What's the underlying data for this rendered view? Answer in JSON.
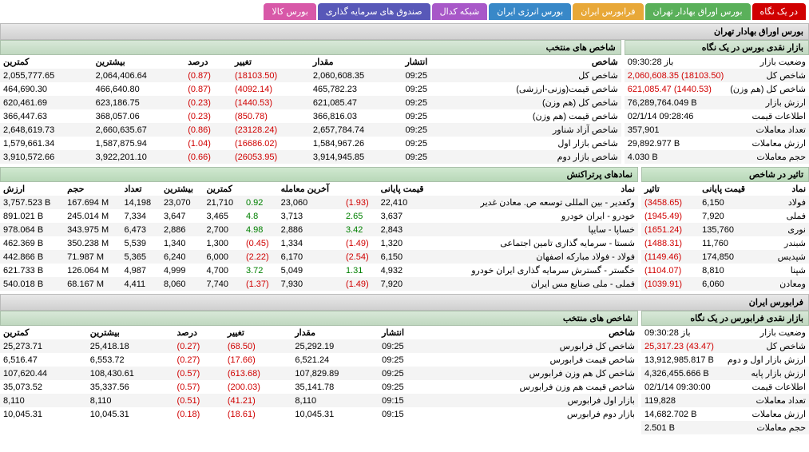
{
  "tabs": [
    {
      "label": "در یک نگاه",
      "bg": "#d00000"
    },
    {
      "label": "بورس اوراق بهادار تهران",
      "bg": "#5ab05a"
    },
    {
      "label": "فرابورس ایران",
      "bg": "#e8a838"
    },
    {
      "label": "بورس انرژی ایران",
      "bg": "#3888c8"
    },
    {
      "label": "شبکه کدال",
      "bg": "#a858c8"
    },
    {
      "label": "صندوق های سرمایه گذاری",
      "bg": "#5858b8"
    },
    {
      "label": "بورس کالا",
      "bg": "#d858a8"
    }
  ],
  "tse": {
    "title": "بورس اوراق بهادار تهران",
    "glance": {
      "title": "بازار نقدی بورس در یک نگاه",
      "rows": [
        {
          "k": "وضعیت بازار",
          "v": "باز 09:30:28",
          "cls": ""
        },
        {
          "k": "شاخص کل",
          "v": "2,060,608.35 (18103.50)",
          "cls": "neg"
        },
        {
          "k": "شاخص کل (هم وزن)",
          "v": "621,085.47 (1440.53)",
          "cls": "neg"
        },
        {
          "k": "ارزش بازار",
          "v": "76,289,764.049 B",
          "cls": ""
        },
        {
          "k": "اطلاعات قیمت",
          "v": "02/1/14 09:28:46",
          "cls": ""
        },
        {
          "k": "تعداد معاملات",
          "v": "357,901",
          "cls": ""
        },
        {
          "k": "ارزش معاملات",
          "v": "29,892.977 B",
          "cls": ""
        },
        {
          "k": "حجم معاملات",
          "v": "4.030 B",
          "cls": ""
        }
      ]
    },
    "indices": {
      "title": "شاخص های منتخب",
      "headers": [
        "شاخص",
        "انتشار",
        "مقدار",
        "تغییر",
        "درصد",
        "بیشترین",
        "کمترین"
      ],
      "rows": [
        [
          "شاخص کل",
          "09:25",
          "2,060,608.35",
          "(18103.50)",
          "(0.87)",
          "2,064,406.64",
          "2,055,777.65"
        ],
        [
          "شاخص قیمت(وزنی-ارزشی)",
          "09:25",
          "465,782.23",
          "(4092.14)",
          "(0.87)",
          "466,640.80",
          "464,690.30"
        ],
        [
          "شاخص کل (هم وزن)",
          "09:25",
          "621,085.47",
          "(1440.53)",
          "(0.23)",
          "623,186.75",
          "620,461.69"
        ],
        [
          "شاخص قیمت (هم وزن)",
          "09:25",
          "366,816.03",
          "(850.78)",
          "(0.23)",
          "368,057.06",
          "366,447.63"
        ],
        [
          "شاخص آزاد شناور",
          "09:25",
          "2,657,784.74",
          "(23128.24)",
          "(0.86)",
          "2,660,635.67",
          "2,648,619.73"
        ],
        [
          "شاخص بازار اول",
          "09:25",
          "1,584,967.26",
          "(16686.02)",
          "(1.04)",
          "1,587,875.94",
          "1,579,661.34"
        ],
        [
          "شاخص بازار دوم",
          "09:25",
          "3,914,945.85",
          "(26053.95)",
          "(0.66)",
          "3,922,201.10",
          "3,910,572.66"
        ]
      ]
    },
    "impact": {
      "title": "تاثیر در شاخص",
      "headers": [
        "نماد",
        "قیمت پایانی",
        "تاثیر"
      ],
      "rows": [
        [
          "فولاد",
          "6,150",
          "(3458.65)"
        ],
        [
          "فملی",
          "7,920",
          "(1945.49)"
        ],
        [
          "نوری",
          "135,760",
          "(1651.24)"
        ],
        [
          "شبندر",
          "11,760",
          "(1488.31)"
        ],
        [
          "شپدیس",
          "174,850",
          "(1149.46)"
        ],
        [
          "شپنا",
          "8,810",
          "(1104.07)"
        ],
        [
          "ومعادن",
          "6,060",
          "(1039.91)"
        ]
      ]
    },
    "top": {
      "title": "نمادهای پرتراکنش",
      "headers": [
        "نماد",
        "قیمت پایانی",
        "",
        "آخرین معامله",
        "",
        "کمترین",
        "بیشترین",
        "تعداد",
        "حجم",
        "ارزش"
      ],
      "rows": [
        [
          "وکغدیر - بین المللی توسعه ص. معادن غدیر",
          "22,410",
          "(1.93)",
          "23,060",
          "0.92",
          "21,710",
          "23,070",
          "14,198",
          "167.694 M",
          "3,757.523 B"
        ],
        [
          "خودرو - ایران خودرو",
          "3,637",
          "2.65",
          "3,713",
          "4.8",
          "3,465",
          "3,647",
          "7,334",
          "245.014 M",
          "891.021 B"
        ],
        [
          "خساپا - سایپا",
          "2,843",
          "3.42",
          "2,886",
          "4.98",
          "2,700",
          "2,886",
          "6,473",
          "343.975 M",
          "978.064 B"
        ],
        [
          "شستا - سرمایه گذاری تامین اجتماعی",
          "1,320",
          "(1.49)",
          "1,334",
          "(0.45)",
          "1,300",
          "1,340",
          "5,539",
          "350.238 M",
          "462.369 B"
        ],
        [
          "فولاد - فولاد مبارکه اصفهان",
          "6,150",
          "(2.54)",
          "6,170",
          "(2.22)",
          "6,000",
          "6,240",
          "5,365",
          "71.987 M",
          "442.866 B"
        ],
        [
          "خگستر - گسترش سرمایه گذاری ایران خودرو",
          "4,932",
          "1.31",
          "5,049",
          "3.72",
          "4,700",
          "4,999",
          "4,987",
          "126.064 M",
          "621.733 B"
        ],
        [
          "فملی - ملی صنایع مس ایران",
          "7,920",
          "(1.49)",
          "7,930",
          "(1.37)",
          "7,740",
          "8,060",
          "4,411",
          "68.167 M",
          "540.018 B"
        ]
      ]
    }
  },
  "ifb": {
    "title": "فرابورس ایران",
    "glance": {
      "title": "بازار نقدی فرابورس در یک نگاه",
      "rows": [
        {
          "k": "وضعیت بازار",
          "v": "باز 09:30:28",
          "cls": ""
        },
        {
          "k": "شاخص کل",
          "v": "25,317.23 (43.47)",
          "cls": "neg"
        },
        {
          "k": "ارزش بازار اول و دوم",
          "v": "13,912,985.817 B",
          "cls": ""
        },
        {
          "k": "ارزش بازار پایه",
          "v": "4,326,455.666 B",
          "cls": ""
        },
        {
          "k": "اطلاعات قیمت",
          "v": "02/1/14 09:30:00",
          "cls": ""
        },
        {
          "k": "تعداد معاملات",
          "v": "119,828",
          "cls": ""
        },
        {
          "k": "ارزش معاملات",
          "v": "14,682.702 B",
          "cls": ""
        },
        {
          "k": "حجم معاملات",
          "v": "2.501 B",
          "cls": ""
        }
      ]
    },
    "indices": {
      "title": "شاخص های منتخب",
      "headers": [
        "شاخص",
        "انتشار",
        "مقدار",
        "تغییر",
        "درصد",
        "بیشترین",
        "کمترین"
      ],
      "rows": [
        [
          "شاخص کل فرابورس",
          "09:25",
          "25,292.19",
          "(68.50)",
          "(0.27)",
          "25,418.18",
          "25,273.71"
        ],
        [
          "شاخص قیمت فرابورس",
          "09:25",
          "6,521.24",
          "(17.66)",
          "(0.27)",
          "6,553.72",
          "6,516.47"
        ],
        [
          "شاخص کل هم وزن فرابورس",
          "09:25",
          "107,829.89",
          "(613.68)",
          "(0.57)",
          "108,430.61",
          "107,620.44"
        ],
        [
          "شاخص قیمت هم وزن فرابورس",
          "09:25",
          "35,141.78",
          "(200.03)",
          "(0.57)",
          "35,337.56",
          "35,073.52"
        ],
        [
          "بازار اول فرابورس",
          "09:15",
          "8,110",
          "(41.21)",
          "(0.51)",
          "8,110",
          "8,110"
        ],
        [
          "بازار دوم فرابورس",
          "09:15",
          "10,045.31",
          "(18.61)",
          "(0.18)",
          "10,045.31",
          "10,045.31"
        ]
      ]
    }
  }
}
